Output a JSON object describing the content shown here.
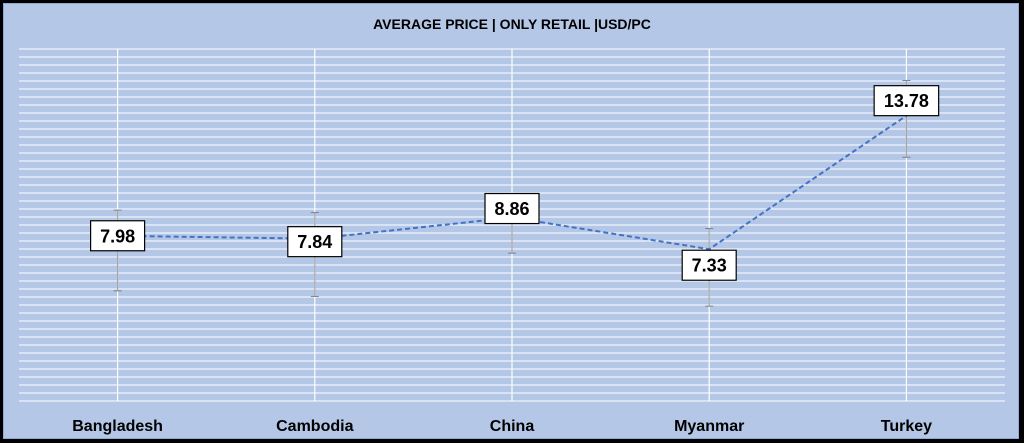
{
  "chart_data": {
    "type": "line",
    "title": "AVERAGE PRICE | ONLY RETAIL |USD/PC",
    "categories": [
      "Bangladesh",
      "Cambodia",
      "China",
      "Myanmar",
      "Turkey"
    ],
    "values": [
      7.98,
      7.84,
      8.86,
      7.33,
      13.78
    ],
    "data_labels": [
      "7.98",
      "7.84",
      "8.86",
      "7.33",
      "13.78"
    ],
    "error_bars": [
      {
        "high": 9.22,
        "low": 5.32
      },
      {
        "high": 9.1,
        "low": 5.05
      },
      {
        "high": 9.94,
        "low": 7.14
      },
      {
        "high": 8.33,
        "low": 4.58
      },
      {
        "high": 15.48,
        "low": 11.77
      }
    ],
    "ylim": [
      0,
      17
    ],
    "grid": true,
    "legend": "none",
    "colors": {
      "line": "#4472c4",
      "background": "#b4c7e7",
      "gridline": "#ffffff",
      "label_box": "#ffffff",
      "label_border": "#000000",
      "error_bar": "#a6a6a6"
    }
  }
}
